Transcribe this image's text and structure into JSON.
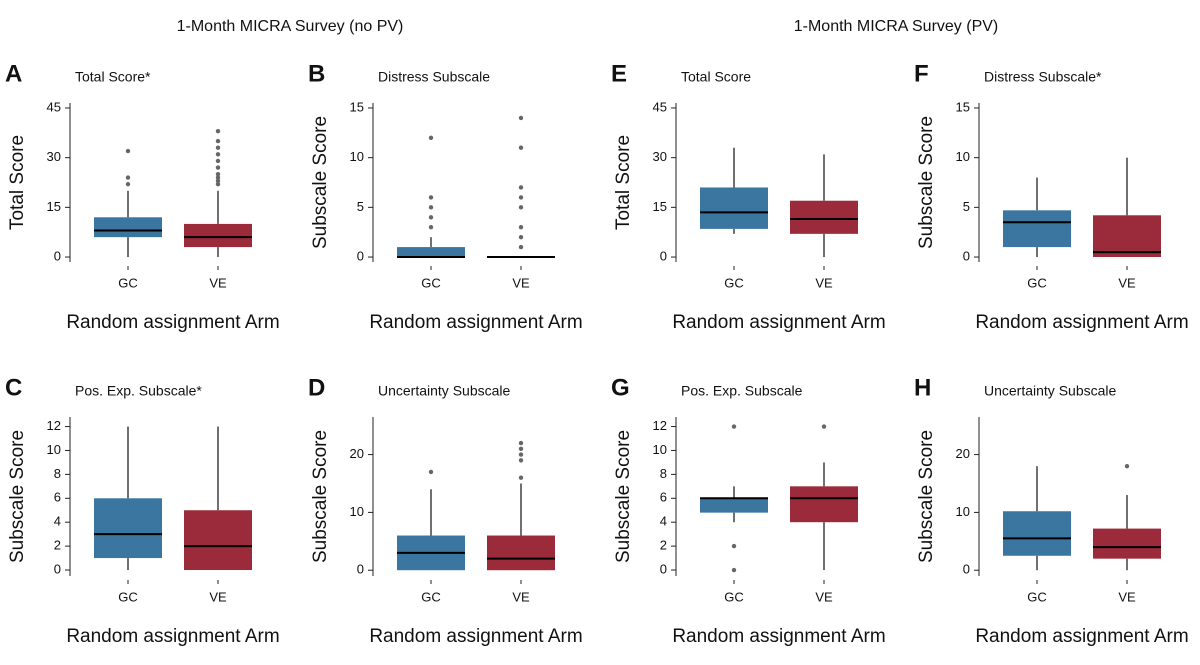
{
  "figure": {
    "group_titles": [
      "1-Month MICRA Survey (no PV)",
      "1-Month MICRA Survey (PV)"
    ]
  },
  "chart_data": [
    {
      "type": "box",
      "panel": "A",
      "title": "Total Score*",
      "ylabel": "Total Score",
      "xlabel": "Random assignment Arm",
      "categories": [
        "GC",
        "VE"
      ],
      "colors": [
        "#3a76a0",
        "#9b2a3a"
      ],
      "ylim": [
        -1.5,
        46.5
      ],
      "yticks": [
        0,
        15,
        30,
        45
      ],
      "boxes": [
        {
          "low": 0,
          "q1": 6,
          "median": 8,
          "q3": 12,
          "high": 20,
          "outliers": [
            22,
            24,
            32
          ]
        },
        {
          "low": 0,
          "q1": 3,
          "median": 6,
          "q3": 10,
          "high": 20,
          "outliers": [
            22,
            23,
            24,
            25,
            27,
            29,
            31,
            33,
            35,
            38
          ]
        }
      ]
    },
    {
      "type": "box",
      "panel": "B",
      "title": "Distress Subscale",
      "ylabel": "Subscale Score",
      "xlabel": "Random assignment Arm",
      "categories": [
        "GC",
        "VE"
      ],
      "colors": [
        "#3a76a0",
        "#9b2a3a"
      ],
      "ylim": [
        -0.5,
        15.5
      ],
      "yticks": [
        0,
        5,
        10,
        15
      ],
      "boxes": [
        {
          "low": 0,
          "q1": 0,
          "median": 0,
          "q3": 1,
          "high": 2,
          "outliers": [
            3,
            4,
            5,
            6,
            12
          ]
        },
        {
          "low": 0,
          "q1": 0,
          "median": 0,
          "q3": 0,
          "high": 0,
          "outliers": [
            1,
            2,
            3,
            5,
            6,
            7,
            11,
            14
          ]
        }
      ]
    },
    {
      "type": "box",
      "panel": "C",
      "title": "Pos. Exp. Subscale*",
      "ylabel": "Subscale Score",
      "xlabel": "Random assignment Arm",
      "categories": [
        "GC",
        "VE"
      ],
      "colors": [
        "#3a76a0",
        "#9b2a3a"
      ],
      "ylim": [
        -0.5,
        12.8
      ],
      "yticks": [
        0,
        2,
        4,
        6,
        8,
        10,
        12
      ],
      "boxes": [
        {
          "low": 0,
          "q1": 1,
          "median": 3,
          "q3": 6,
          "high": 12,
          "outliers": []
        },
        {
          "low": 0,
          "q1": 0,
          "median": 2,
          "q3": 5,
          "high": 12,
          "outliers": []
        }
      ]
    },
    {
      "type": "box",
      "panel": "D",
      "title": "Uncertainty Subscale",
      "ylabel": "Subscale Score",
      "xlabel": "Random assignment Arm",
      "categories": [
        "GC",
        "VE"
      ],
      "colors": [
        "#3a76a0",
        "#9b2a3a"
      ],
      "ylim": [
        -1,
        26.5
      ],
      "yticks": [
        0,
        10,
        20
      ],
      "boxes": [
        {
          "low": 0,
          "q1": 0,
          "median": 3,
          "q3": 6,
          "high": 14,
          "outliers": [
            17
          ]
        },
        {
          "low": 0,
          "q1": 0,
          "median": 2,
          "q3": 6,
          "high": 15,
          "outliers": [
            16,
            19,
            20,
            21,
            22
          ]
        }
      ]
    },
    {
      "type": "box",
      "panel": "E",
      "title": "Total Score",
      "ylabel": "Total Score",
      "xlabel": "Random assignment Arm",
      "categories": [
        "GC",
        "VE"
      ],
      "colors": [
        "#3a76a0",
        "#9b2a3a"
      ],
      "ylim": [
        -1.5,
        46.5
      ],
      "yticks": [
        0,
        15,
        30,
        45
      ],
      "boxes": [
        {
          "low": 7,
          "q1": 8.5,
          "median": 13.5,
          "q3": 21,
          "high": 33,
          "outliers": []
        },
        {
          "low": 0,
          "q1": 7,
          "median": 11.5,
          "q3": 17,
          "high": 31,
          "outliers": []
        }
      ]
    },
    {
      "type": "box",
      "panel": "F",
      "title": "Distress Subscale*",
      "ylabel": "Subscale Score",
      "xlabel": "Random assignment Arm",
      "categories": [
        "GC",
        "VE"
      ],
      "colors": [
        "#3a76a0",
        "#9b2a3a"
      ],
      "ylim": [
        -0.5,
        15.5
      ],
      "yticks": [
        0,
        5,
        10,
        15
      ],
      "boxes": [
        {
          "low": 0,
          "q1": 1,
          "median": 3.5,
          "q3": 4.7,
          "high": 8,
          "outliers": []
        },
        {
          "low": 0,
          "q1": 0,
          "median": 0.5,
          "q3": 4.2,
          "high": 10,
          "outliers": []
        }
      ]
    },
    {
      "type": "box",
      "panel": "G",
      "title": "Pos. Exp. Subscale",
      "ylabel": "Subscale Score",
      "xlabel": "Random assignment Arm",
      "categories": [
        "GC",
        "VE"
      ],
      "colors": [
        "#3a76a0",
        "#9b2a3a"
      ],
      "ylim": [
        -0.5,
        12.8
      ],
      "yticks": [
        0,
        2,
        4,
        6,
        8,
        10,
        12
      ],
      "boxes": [
        {
          "low": 4,
          "q1": 4.8,
          "median": 6,
          "q3": 6,
          "high": 7,
          "outliers": [
            0,
            2,
            12
          ]
        },
        {
          "low": 0,
          "q1": 4,
          "median": 6,
          "q3": 7,
          "high": 9,
          "outliers": [
            12
          ]
        }
      ]
    },
    {
      "type": "box",
      "panel": "H",
      "title": "Uncertainty Subscale",
      "ylabel": "Subscale Score",
      "xlabel": "Random assignment Arm",
      "categories": [
        "GC",
        "VE"
      ],
      "colors": [
        "#3a76a0",
        "#9b2a3a"
      ],
      "ylim": [
        -1,
        26.5
      ],
      "yticks": [
        0,
        10,
        20
      ],
      "boxes": [
        {
          "low": 0,
          "q1": 2.5,
          "median": 5.5,
          "q3": 10.2,
          "high": 18,
          "outliers": []
        },
        {
          "low": 0,
          "q1": 2,
          "median": 4,
          "q3": 7.2,
          "high": 13,
          "outliers": [
            18
          ]
        }
      ]
    }
  ]
}
